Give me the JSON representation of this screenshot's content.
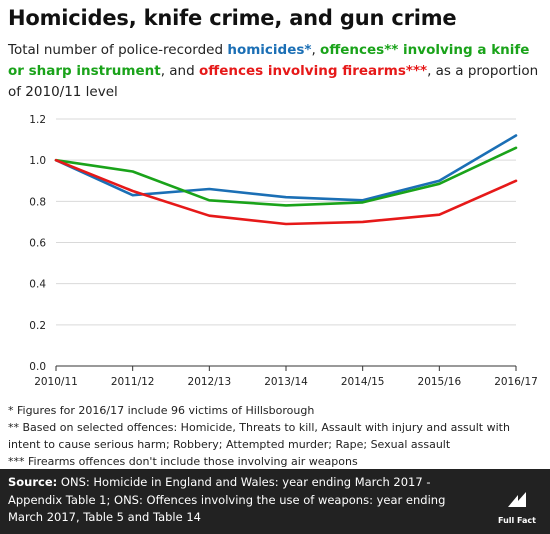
{
  "title": "Homicides, knife crime, and gun crime",
  "subtitle": {
    "p1": "Total number of police-recorded ",
    "homicides": "homicides*",
    "p2": ", ",
    "knife": "offences** involving a knife or sharp instrument",
    "p3": ", and ",
    "firearms": "offences involving firearms***",
    "p4": ", as a proportion of 2010/11 level"
  },
  "colors": {
    "homicides": "#1b6fb5",
    "knife": "#1aa31a",
    "firearms": "#e61919"
  },
  "chart_data": {
    "type": "line",
    "categories": [
      "2010/11",
      "2011/12",
      "2012/13",
      "2013/14",
      "2014/15",
      "2015/16",
      "2016/17"
    ],
    "ylim": [
      0,
      1.2
    ],
    "yticks": [
      "0.0",
      "0.2",
      "0.4",
      "0.6",
      "0.8",
      "1.0",
      "1.2"
    ],
    "grid": true,
    "series": [
      {
        "name": "homicides",
        "color": "#1b6fb5",
        "values": [
          1.0,
          0.83,
          0.86,
          0.82,
          0.805,
          0.9,
          1.12
        ]
      },
      {
        "name": "offences involving a knife or sharp instrument",
        "color": "#1aa31a",
        "values": [
          1.0,
          0.945,
          0.805,
          0.78,
          0.795,
          0.885,
          1.06
        ]
      },
      {
        "name": "offences involving firearms",
        "color": "#e61919",
        "values": [
          1.0,
          0.85,
          0.73,
          0.69,
          0.7,
          0.735,
          0.9
        ]
      }
    ]
  },
  "notes": [
    "* Figures for 2016/17 include 96 victims of Hillsborough",
    "** Based on selected offences: Homicide, Threats to kill, Assault with injury and assult with",
    "intent to cause serious harm; Robbery; Attempted murder; Rape; Sexual assault",
    "*** Firearms offences don't include those involving air weapons"
  ],
  "footer": {
    "source_label": "Source:",
    "source_text": " ONS: Homicide in England and Wales: year ending March 2017 - Appendix Table 1; ONS: Offences involving the use of weapons: year ending March 2017, Table 5 and Table 14",
    "logo_text": "Full Fact"
  }
}
